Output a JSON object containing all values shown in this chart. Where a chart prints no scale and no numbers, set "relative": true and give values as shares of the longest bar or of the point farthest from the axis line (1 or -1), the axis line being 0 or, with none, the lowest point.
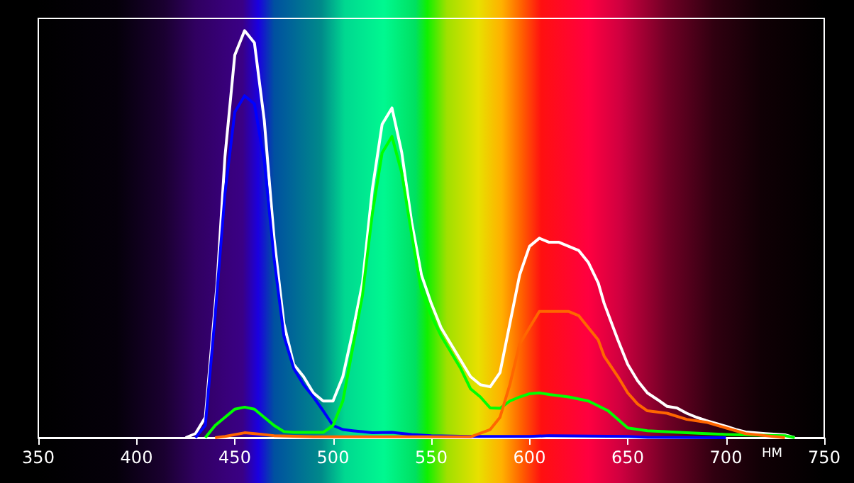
{
  "chart_data": {
    "type": "line",
    "xlabel": "НМ",
    "xlim": [
      350,
      750
    ],
    "xticks": [
      350,
      400,
      450,
      500,
      550,
      600,
      650,
      700,
      750
    ],
    "relative": true,
    "marker": "none",
    "line_style": "solid",
    "series": [
      {
        "color": "#ffffff",
        "x": [
          425,
          430,
          435,
          441,
          445,
          450,
          455,
          460,
          465,
          470,
          475,
          480,
          485,
          490,
          495,
          500,
          505,
          510,
          515,
          520,
          525,
          530,
          535,
          540,
          545,
          550,
          555,
          560,
          565,
          570,
          575,
          580,
          585,
          590,
          595,
          600,
          605,
          610,
          615,
          620,
          625,
          630,
          635,
          638,
          645,
          650,
          655,
          660,
          665,
          670,
          675,
          680,
          685,
          690,
          695,
          700,
          705,
          710,
          720,
          730,
          735
        ],
        "values": [
          0,
          0.01,
          0.05,
          0.38,
          0.69,
          0.94,
          1,
          0.97,
          0.78,
          0.49,
          0.28,
          0.18,
          0.15,
          0.11,
          0.09,
          0.09,
          0.15,
          0.26,
          0.38,
          0.61,
          0.77,
          0.81,
          0.7,
          0.53,
          0.4,
          0.33,
          0.27,
          0.23,
          0.19,
          0.15,
          0.13,
          0.125,
          0.16,
          0.28,
          0.4,
          0.47,
          0.49,
          0.48,
          0.48,
          0.47,
          0.46,
          0.43,
          0.38,
          0.33,
          0.24,
          0.18,
          0.14,
          0.11,
          0.094,
          0.077,
          0.073,
          0.06,
          0.05,
          0.042,
          0.035,
          0.028,
          0.02,
          0.014,
          0.01,
          0.007,
          0
        ]
      },
      {
        "color": "#0000ff",
        "x": [
          430,
          435,
          440,
          445,
          450,
          455,
          460,
          465,
          470,
          475,
          480,
          485,
          490,
          495,
          500,
          505,
          510,
          520,
          530,
          540,
          550,
          570,
          600,
          610,
          630,
          650,
          660,
          700
        ],
        "values": [
          0,
          0.03,
          0.3,
          0.6,
          0.8,
          0.84,
          0.82,
          0.68,
          0.44,
          0.25,
          0.17,
          0.13,
          0.1,
          0.066,
          0.03,
          0.02,
          0.017,
          0.012,
          0.013,
          0.008,
          0.005,
          0.003,
          0.003,
          0.005,
          0.004,
          0.003,
          0.001,
          0
        ]
      },
      {
        "color": "#00ff00",
        "x": [
          435,
          440,
          445,
          450,
          455,
          460,
          465,
          470,
          475,
          480,
          495,
          500,
          505,
          510,
          515,
          520,
          525,
          530,
          535,
          540,
          545,
          550,
          555,
          560,
          565,
          570,
          575,
          580,
          585,
          590,
          595,
          600,
          605,
          610,
          620,
          630,
          640,
          650,
          660,
          680,
          700,
          730,
          735
        ],
        "values": [
          0,
          0.03,
          0.05,
          0.07,
          0.075,
          0.07,
          0.05,
          0.03,
          0.015,
          0.013,
          0.013,
          0.03,
          0.09,
          0.22,
          0.35,
          0.55,
          0.7,
          0.74,
          0.65,
          0.5,
          0.36,
          0.3,
          0.25,
          0.21,
          0.17,
          0.12,
          0.1,
          0.073,
          0.072,
          0.09,
          0.1,
          0.108,
          0.11,
          0.106,
          0.1,
          0.09,
          0.066,
          0.024,
          0.017,
          0.012,
          0.008,
          0.005,
          0
        ]
      },
      {
        "color": "#ff6600",
        "x": [
          440,
          445,
          455,
          460,
          470,
          490,
          570,
          580,
          585,
          590,
          595,
          600,
          605,
          610,
          620,
          625,
          630,
          635,
          638,
          645,
          650,
          655,
          660,
          670,
          680,
          690,
          700,
          710,
          720,
          730
        ],
        "values": [
          0,
          0.003,
          0.012,
          0.01,
          0.005,
          0.002,
          0.002,
          0.02,
          0.05,
          0.13,
          0.23,
          0.27,
          0.31,
          0.31,
          0.31,
          0.3,
          0.27,
          0.24,
          0.2,
          0.15,
          0.11,
          0.083,
          0.066,
          0.06,
          0.045,
          0.038,
          0.024,
          0.01,
          0.005,
          0
        ]
      }
    ]
  }
}
